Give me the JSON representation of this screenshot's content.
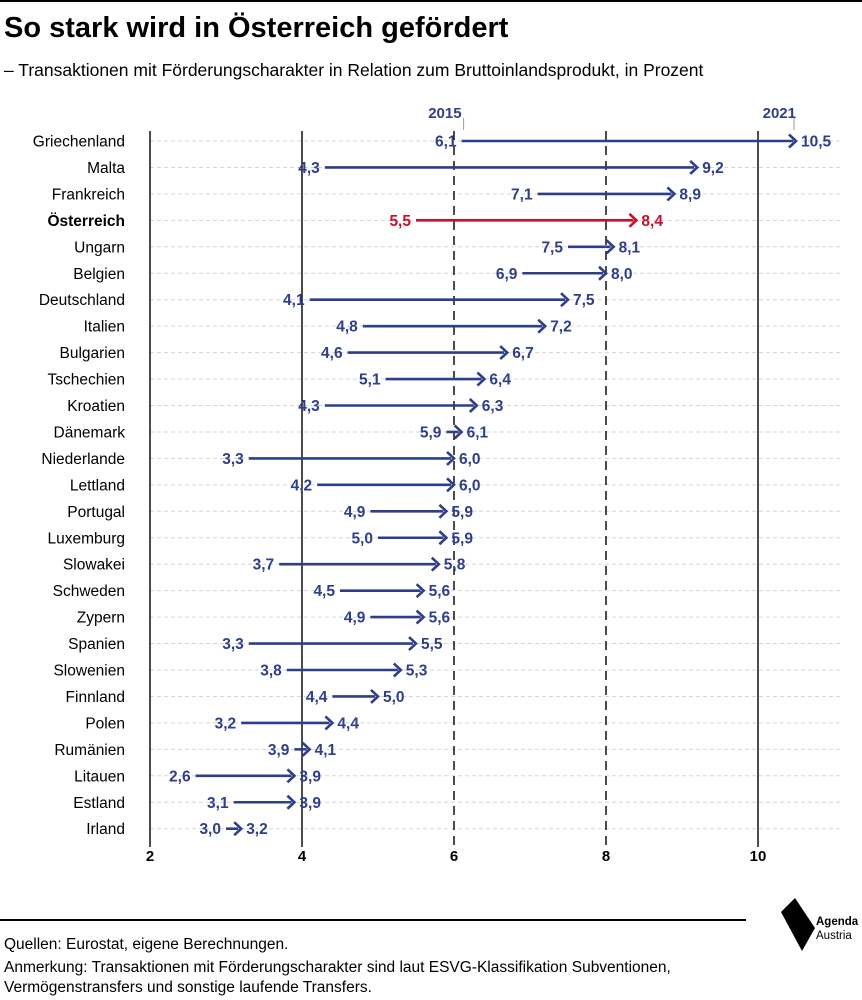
{
  "title": "So stark wird in Österreich gefördert",
  "subtitle": "– Transaktionen mit Förderungscharakter in Relation zum Bruttoinlandsprodukt, in Prozent",
  "footer": {
    "source": "Quellen: Eurostat, eigene Berechnungen.",
    "note_line1": "Anmerkung: Transaktionen mit Förderungscharakter sind laut ESVG-Klassifikation Subventionen,",
    "note_line2": "Vermögenstransfers und sonstige laufende Transfers."
  },
  "logo": {
    "name_line1": "Agenda",
    "name_line2": "Austria"
  },
  "colors": {
    "arrow": "#2f3e8a",
    "highlight": "#c8102e",
    "text": "#000000"
  },
  "chart_data": {
    "type": "arrow",
    "legend": {
      "start": "2015",
      "end": "2021"
    },
    "xlim": [
      2,
      10.5
    ],
    "xticks": [
      "2",
      "4",
      "6",
      "8",
      "10"
    ],
    "grid": "vertical lines at 2, 4, 6, 8, 10; dashed horizontal row guides",
    "highlight": "Österreich",
    "rows": [
      {
        "country": "Griechenland",
        "start": 6.1,
        "end": 10.5,
        "start_label": "6,1",
        "end_label": "10,5"
      },
      {
        "country": "Malta",
        "start": 4.3,
        "end": 9.2,
        "start_label": "4,3",
        "end_label": "9,2"
      },
      {
        "country": "Frankreich",
        "start": 7.1,
        "end": 8.9,
        "start_label": "7,1",
        "end_label": "8,9"
      },
      {
        "country": "Österreich",
        "start": 5.5,
        "end": 8.4,
        "start_label": "5,5",
        "end_label": "8,4"
      },
      {
        "country": "Ungarn",
        "start": 7.5,
        "end": 8.1,
        "start_label": "7,5",
        "end_label": "8,1"
      },
      {
        "country": "Belgien",
        "start": 6.9,
        "end": 8.0,
        "start_label": "6,9",
        "end_label": "8,0"
      },
      {
        "country": "Deutschland",
        "start": 4.1,
        "end": 7.5,
        "start_label": "4,1",
        "end_label": "7,5"
      },
      {
        "country": "Italien",
        "start": 4.8,
        "end": 7.2,
        "start_label": "4,8",
        "end_label": "7,2"
      },
      {
        "country": "Bulgarien",
        "start": 4.6,
        "end": 6.7,
        "start_label": "4,6",
        "end_label": "6,7"
      },
      {
        "country": "Tschechien",
        "start": 5.1,
        "end": 6.4,
        "start_label": "5,1",
        "end_label": "6,4"
      },
      {
        "country": "Kroatien",
        "start": 4.3,
        "end": 6.3,
        "start_label": "4,3",
        "end_label": "6,3"
      },
      {
        "country": "Dänemark",
        "start": 5.9,
        "end": 6.1,
        "start_label": "5,9",
        "end_label": "6,1"
      },
      {
        "country": "Niederlande",
        "start": 3.3,
        "end": 6.0,
        "start_label": "3,3",
        "end_label": "6,0"
      },
      {
        "country": "Lettland",
        "start": 4.2,
        "end": 6.0,
        "start_label": "4,2",
        "end_label": "6,0"
      },
      {
        "country": "Portugal",
        "start": 4.9,
        "end": 5.9,
        "start_label": "4,9",
        "end_label": "5,9"
      },
      {
        "country": "Luxemburg",
        "start": 5.0,
        "end": 5.9,
        "start_label": "5,0",
        "end_label": "5,9"
      },
      {
        "country": "Slowakei",
        "start": 3.7,
        "end": 5.8,
        "start_label": "3,7",
        "end_label": "5,8"
      },
      {
        "country": "Schweden",
        "start": 4.5,
        "end": 5.6,
        "start_label": "4,5",
        "end_label": "5,6"
      },
      {
        "country": "Zypern",
        "start": 4.9,
        "end": 5.6,
        "start_label": "4,9",
        "end_label": "5,6"
      },
      {
        "country": "Spanien",
        "start": 3.3,
        "end": 5.5,
        "start_label": "3,3",
        "end_label": "5,5"
      },
      {
        "country": "Slowenien",
        "start": 3.8,
        "end": 5.3,
        "start_label": "3,8",
        "end_label": "5,3"
      },
      {
        "country": "Finnland",
        "start": 4.4,
        "end": 5.0,
        "start_label": "4,4",
        "end_label": "5,0"
      },
      {
        "country": "Polen",
        "start": 3.2,
        "end": 4.4,
        "start_label": "3,2",
        "end_label": "4,4"
      },
      {
        "country": "Rumänien",
        "start": 3.9,
        "end": 4.1,
        "start_label": "3,9",
        "end_label": "4,1"
      },
      {
        "country": "Litauen",
        "start": 2.6,
        "end": 3.9,
        "start_label": "2,6",
        "end_label": "3,9"
      },
      {
        "country": "Estland",
        "start": 3.1,
        "end": 3.9,
        "start_label": "3,1",
        "end_label": "3,9"
      },
      {
        "country": "Irland",
        "start": 3.0,
        "end": 3.2,
        "start_label": "3,0",
        "end_label": "3,2"
      }
    ]
  }
}
